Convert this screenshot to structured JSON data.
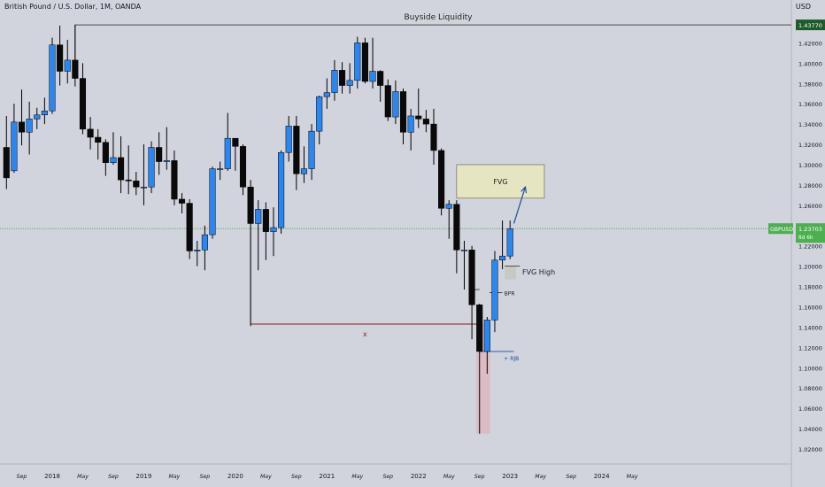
{
  "header": {
    "title": "British Pound / U.S. Dollar, 1M, OANDA",
    "currency": "USD"
  },
  "colors": {
    "background": "#d1d4dc",
    "bull": "#2a86f0",
    "bear": "#0a0a0a",
    "axis_text": "#131722",
    "liquidity_line": "#4a4a4a",
    "x_line": "#8b1a1a",
    "fvg_zone": "#e6e5c2",
    "fvg_high_zone": "#c4cbc5",
    "red_zone": "#dcbcc4",
    "price_line": "#4caf50",
    "arrow": "#1f4e9e",
    "tag_dark_green": "#1e5a2a",
    "tag_green": "#4caf50"
  },
  "chart_data": {
    "type": "candlestick",
    "title": "British Pound / U.S. Dollar, 1M, OANDA",
    "ylim": [
      1.02,
      1.45
    ],
    "yticks": [
      "1.42000",
      "1.40000",
      "1.38000",
      "1.36000",
      "1.34000",
      "1.32000",
      "1.30000",
      "1.28000",
      "1.26000",
      "1.24000",
      "1.22000",
      "1.20000",
      "1.18000",
      "1.16000",
      "1.14000",
      "1.12000",
      "1.10000",
      "1.08000",
      "1.06000",
      "1.04000",
      "1.02000"
    ],
    "x_axis": {
      "labels": [
        "Sep",
        "2018",
        "May",
        "Sep",
        "2019",
        "May",
        "Sep",
        "2020",
        "May",
        "Sep",
        "2021",
        "May",
        "Sep",
        "2022",
        "May",
        "Sep",
        "2023",
        "May",
        "Sep",
        "2024",
        "May"
      ],
      "label_months": [
        -4,
        0,
        4,
        8,
        12,
        16,
        20,
        24,
        28,
        32,
        36,
        40,
        44,
        48,
        52,
        56,
        60,
        64,
        68,
        72,
        76
      ]
    },
    "candles": [
      {
        "t": -6,
        "o": 1.317,
        "h": 1.348,
        "l": 1.276,
        "c": 1.287
      },
      {
        "t": -5,
        "o": 1.294,
        "h": 1.36,
        "l": 1.292,
        "c": 1.342
      },
      {
        "t": -4,
        "o": 1.342,
        "h": 1.374,
        "l": 1.319,
        "c": 1.332
      },
      {
        "t": -3,
        "o": 1.332,
        "h": 1.362,
        "l": 1.31,
        "c": 1.345
      },
      {
        "t": -2,
        "o": 1.345,
        "h": 1.356,
        "l": 1.335,
        "c": 1.349
      },
      {
        "t": -1,
        "o": 1.349,
        "h": 1.366,
        "l": 1.34,
        "c": 1.353
      },
      {
        "t": 0,
        "o": 1.353,
        "h": 1.425,
        "l": 1.35,
        "c": 1.418
      },
      {
        "t": 1,
        "o": 1.418,
        "h": 1.437,
        "l": 1.378,
        "c": 1.392
      },
      {
        "t": 2,
        "o": 1.392,
        "h": 1.423,
        "l": 1.38,
        "c": 1.403
      },
      {
        "t": 3,
        "o": 1.403,
        "h": 1.438,
        "l": 1.377,
        "c": 1.385
      },
      {
        "t": 4,
        "o": 1.385,
        "h": 1.4,
        "l": 1.33,
        "c": 1.335
      },
      {
        "t": 5,
        "o": 1.335,
        "h": 1.347,
        "l": 1.315,
        "c": 1.327
      },
      {
        "t": 6,
        "o": 1.327,
        "h": 1.335,
        "l": 1.305,
        "c": 1.322
      },
      {
        "t": 7,
        "o": 1.322,
        "h": 1.325,
        "l": 1.289,
        "c": 1.302
      },
      {
        "t": 8,
        "o": 1.302,
        "h": 1.332,
        "l": 1.3,
        "c": 1.307
      },
      {
        "t": 9,
        "o": 1.307,
        "h": 1.328,
        "l": 1.272,
        "c": 1.285
      },
      {
        "t": 10,
        "o": 1.285,
        "h": 1.319,
        "l": 1.271,
        "c": 1.284
      },
      {
        "t": 11,
        "o": 1.284,
        "h": 1.293,
        "l": 1.27,
        "c": 1.278
      },
      {
        "t": 12,
        "o": 1.278,
        "h": 1.32,
        "l": 1.26,
        "c": 1.278
      },
      {
        "t": 13,
        "o": 1.278,
        "h": 1.323,
        "l": 1.272,
        "c": 1.317
      },
      {
        "t": 14,
        "o": 1.317,
        "h": 1.332,
        "l": 1.29,
        "c": 1.303
      },
      {
        "t": 15,
        "o": 1.303,
        "h": 1.337,
        "l": 1.295,
        "c": 1.304
      },
      {
        "t": 16,
        "o": 1.304,
        "h": 1.314,
        "l": 1.26,
        "c": 1.266
      },
      {
        "t": 17,
        "o": 1.266,
        "h": 1.272,
        "l": 1.252,
        "c": 1.262
      },
      {
        "t": 18,
        "o": 1.262,
        "h": 1.266,
        "l": 1.207,
        "c": 1.215
      },
      {
        "t": 19,
        "o": 1.215,
        "h": 1.225,
        "l": 1.2,
        "c": 1.216
      },
      {
        "t": 20,
        "o": 1.216,
        "h": 1.24,
        "l": 1.196,
        "c": 1.231
      },
      {
        "t": 21,
        "o": 1.231,
        "h": 1.298,
        "l": 1.227,
        "c": 1.296
      },
      {
        "t": 22,
        "o": 1.296,
        "h": 1.303,
        "l": 1.285,
        "c": 1.296
      },
      {
        "t": 23,
        "o": 1.296,
        "h": 1.351,
        "l": 1.294,
        "c": 1.326
      },
      {
        "t": 24,
        "o": 1.326,
        "h": 1.326,
        "l": 1.294,
        "c": 1.318
      },
      {
        "t": 25,
        "o": 1.318,
        "h": 1.32,
        "l": 1.27,
        "c": 1.278
      },
      {
        "t": 26,
        "o": 1.278,
        "h": 1.285,
        "l": 1.141,
        "c": 1.242
      },
      {
        "t": 27,
        "o": 1.242,
        "h": 1.265,
        "l": 1.196,
        "c": 1.256
      },
      {
        "t": 28,
        "o": 1.256,
        "h": 1.263,
        "l": 1.206,
        "c": 1.234
      },
      {
        "t": 29,
        "o": 1.234,
        "h": 1.258,
        "l": 1.21,
        "c": 1.238
      },
      {
        "t": 30,
        "o": 1.238,
        "h": 1.314,
        "l": 1.232,
        "c": 1.312
      },
      {
        "t": 31,
        "o": 1.312,
        "h": 1.348,
        "l": 1.303,
        "c": 1.338
      },
      {
        "t": 32,
        "o": 1.338,
        "h": 1.348,
        "l": 1.275,
        "c": 1.291
      },
      {
        "t": 33,
        "o": 1.291,
        "h": 1.318,
        "l": 1.282,
        "c": 1.296
      },
      {
        "t": 34,
        "o": 1.296,
        "h": 1.34,
        "l": 1.285,
        "c": 1.333
      },
      {
        "t": 35,
        "o": 1.333,
        "h": 1.368,
        "l": 1.32,
        "c": 1.367
      },
      {
        "t": 36,
        "o": 1.367,
        "h": 1.385,
        "l": 1.355,
        "c": 1.371
      },
      {
        "t": 37,
        "o": 1.371,
        "h": 1.403,
        "l": 1.363,
        "c": 1.393
      },
      {
        "t": 38,
        "o": 1.393,
        "h": 1.401,
        "l": 1.37,
        "c": 1.378
      },
      {
        "t": 39,
        "o": 1.378,
        "h": 1.4,
        "l": 1.37,
        "c": 1.383
      },
      {
        "t": 40,
        "o": 1.383,
        "h": 1.426,
        "l": 1.375,
        "c": 1.42
      },
      {
        "t": 41,
        "o": 1.42,
        "h": 1.425,
        "l": 1.38,
        "c": 1.382
      },
      {
        "t": 42,
        "o": 1.382,
        "h": 1.425,
        "l": 1.375,
        "c": 1.392
      },
      {
        "t": 43,
        "o": 1.392,
        "h": 1.393,
        "l": 1.362,
        "c": 1.378
      },
      {
        "t": 44,
        "o": 1.378,
        "h": 1.384,
        "l": 1.343,
        "c": 1.347
      },
      {
        "t": 45,
        "o": 1.347,
        "h": 1.383,
        "l": 1.34,
        "c": 1.372
      },
      {
        "t": 46,
        "o": 1.372,
        "h": 1.375,
        "l": 1.32,
        "c": 1.332
      },
      {
        "t": 47,
        "o": 1.332,
        "h": 1.355,
        "l": 1.314,
        "c": 1.348
      },
      {
        "t": 48,
        "o": 1.348,
        "h": 1.375,
        "l": 1.336,
        "c": 1.345
      },
      {
        "t": 49,
        "o": 1.345,
        "h": 1.354,
        "l": 1.332,
        "c": 1.34
      },
      {
        "t": 50,
        "o": 1.34,
        "h": 1.355,
        "l": 1.3,
        "c": 1.314
      },
      {
        "t": 51,
        "o": 1.314,
        "h": 1.316,
        "l": 1.25,
        "c": 1.257
      },
      {
        "t": 52,
        "o": 1.257,
        "h": 1.265,
        "l": 1.227,
        "c": 1.261
      },
      {
        "t": 53,
        "o": 1.261,
        "h": 1.265,
        "l": 1.193,
        "c": 1.216
      },
      {
        "t": 54,
        "o": 1.216,
        "h": 1.225,
        "l": 1.177,
        "c": 1.216
      },
      {
        "t": 55,
        "o": 1.216,
        "h": 1.22,
        "l": 1.128,
        "c": 1.162
      },
      {
        "t": 56,
        "o": 1.162,
        "h": 1.163,
        "l": 1.035,
        "c": 1.116
      },
      {
        "t": 57,
        "o": 1.116,
        "h": 1.15,
        "l": 1.094,
        "c": 1.147
      },
      {
        "t": 58,
        "o": 1.147,
        "h": 1.215,
        "l": 1.135,
        "c": 1.206
      },
      {
        "t": 59,
        "o": 1.206,
        "h": 1.245,
        "l": 1.197,
        "c": 1.21
      },
      {
        "t": 60,
        "o": 1.21,
        "h": 1.245,
        "l": 1.207,
        "c": 1.237
      }
    ],
    "current_price": {
      "value": 1.23703,
      "label": "1.23703",
      "symbol": "GBPUSD",
      "countdown": "8d 6h"
    },
    "liquidity_level": {
      "value": 1.4377,
      "label": "1.43770"
    },
    "annotations": {
      "buyside_liquidity": "Buyside Liquidity",
      "fvg": "FVG",
      "fvg_high": "FVG High",
      "bpr": "BPR",
      "rjb": "+ RJB",
      "x_mark": "x"
    },
    "zones": {
      "fvg": {
        "t_start": 53.0,
        "t_end": 64.5,
        "top": 1.3,
        "bottom": 1.267
      },
      "fvg_high": {
        "t_start": 59.3,
        "t_end": 60.8,
        "top": 1.2,
        "bottom": 1.187
      },
      "red": {
        "t_start": 55.6,
        "t_end": 57.4,
        "top": 1.143,
        "bottom": 1.035
      }
    },
    "levels": {
      "liquidity_from_t": 3.0,
      "x_level": {
        "value": 1.143,
        "from_t": 26.0,
        "to_t": 56.0
      },
      "fvg_high_line": {
        "value": 1.2,
        "from_t": 59.3,
        "to_t": 61.3
      },
      "bpr": {
        "value": 1.174,
        "from_t": 57.3,
        "to_t": 59.0
      },
      "bpr_low": {
        "value": 1.177,
        "from_t": 54.6,
        "to_t": 56.0
      },
      "rjb": {
        "value": 1.116,
        "from_t": 56.0,
        "to_t": 60.5
      }
    },
    "arrow": {
      "from_t": 60.5,
      "from_v": 1.242,
      "to_t": 62.0,
      "to_v": 1.278
    }
  }
}
